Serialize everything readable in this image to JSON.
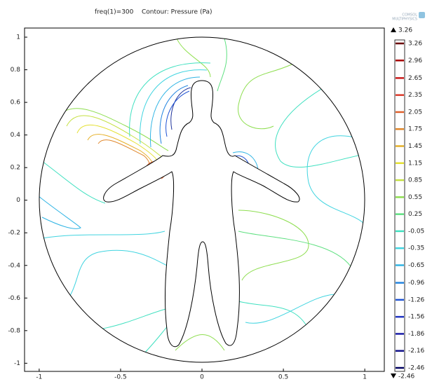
{
  "chart_data": {
    "type": "contour",
    "title": "freq(1)=300",
    "subtitle": "Contour: Pressure (Pa)",
    "logo": [
      "COMSOL",
      "MULTIPHYSICS"
    ],
    "xlim": [
      -1.09,
      1.12
    ],
    "ylim": [
      -1.05,
      1.056
    ],
    "xticks": [
      -1,
      -0.5,
      0,
      0.5,
      1
    ],
    "yticks": [
      -1,
      -0.8,
      -0.6,
      -0.4,
      -0.2,
      0,
      0.2,
      0.4,
      0.6,
      0.8,
      1
    ],
    "colorbar": {
      "max": 3.26,
      "min": -2.46,
      "levels": [
        3.26,
        2.96,
        2.65,
        2.35,
        2.05,
        1.75,
        1.45,
        1.15,
        0.85,
        0.55,
        0.25,
        -0.05,
        -0.35,
        -0.65,
        -0.96,
        -1.26,
        -1.56,
        -1.86,
        -2.16,
        -2.46
      ],
      "colors": [
        "#6b0000",
        "#a80000",
        "#cc1a1a",
        "#dc3a2a",
        "#e0602a",
        "#e0862a",
        "#e6b028",
        "#e4e030",
        "#c4e040",
        "#8ede50",
        "#5ee080",
        "#40e0c0",
        "#40d4e0",
        "#30b4e4",
        "#2284e0",
        "#2054d4",
        "#2034c4",
        "#1a1ca8",
        "#10108a",
        "#000060"
      ]
    }
  }
}
